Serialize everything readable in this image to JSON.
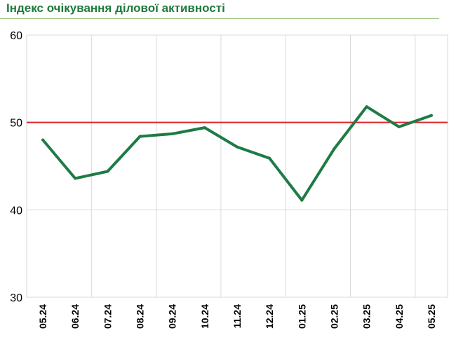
{
  "chart_data": {
    "type": "line",
    "title": "Індекс очікування ділової активності",
    "categories": [
      "05.24",
      "06.24",
      "07.24",
      "08.24",
      "09.24",
      "10.24",
      "11.24",
      "12.24",
      "01.25",
      "02.25",
      "03.25",
      "04.25",
      "05.25"
    ],
    "series": [
      {
        "values": [
          48.0,
          43.6,
          44.4,
          48.4,
          48.7,
          49.4,
          47.2,
          45.9,
          41.1,
          47.0,
          51.8,
          49.5,
          50.8
        ]
      }
    ],
    "ylim": [
      30,
      60
    ],
    "yticks": [
      30,
      40,
      50,
      60
    ],
    "reference_line": 50,
    "grid": true,
    "colors": {
      "line": "#1e7b45",
      "reference": "#d9232a",
      "title": "#1f7a3c",
      "grid": "#d9d9d9"
    }
  }
}
